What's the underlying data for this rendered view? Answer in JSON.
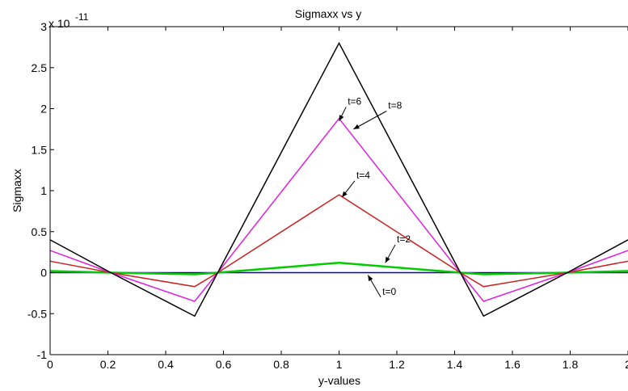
{
  "chart_data": {
    "type": "line",
    "title": "Sigmaxx vs y",
    "xlabel": "y-values",
    "ylabel": "Sigmaxx",
    "y_exponent_label": "x 10",
    "y_exponent_power": "-11",
    "xlim": [
      0,
      2
    ],
    "ylim": [
      -1,
      3
    ],
    "grid": false,
    "x_ticks": [
      0,
      0.2,
      0.4,
      0.6,
      0.8,
      1,
      1.2,
      1.4,
      1.6,
      1.8,
      2
    ],
    "x_tick_labels": [
      "0",
      "0.2",
      "0.4",
      "0.6",
      "0.8",
      "1",
      "1.2",
      "1.4",
      "1.6",
      "1.8",
      "2"
    ],
    "y_ticks": [
      -1,
      -0.5,
      0,
      0.5,
      1,
      1.5,
      2,
      2.5,
      3
    ],
    "y_tick_labels": [
      "-1",
      "-0.5",
      "0",
      "0.5",
      "1",
      "1.5",
      "2",
      "2.5",
      "3"
    ],
    "series": [
      {
        "name": "t=0",
        "color": "#0000cc",
        "x": [
          0,
          0.5,
          1,
          1.5,
          2
        ],
        "y": [
          0,
          0,
          0,
          0,
          0
        ]
      },
      {
        "name": "t=2",
        "color": "#00cc00",
        "x": [
          0,
          0.21,
          0.5,
          0.58,
          1,
          1.42,
          1.5,
          1.79,
          2
        ],
        "y": [
          0.02,
          0,
          -0.02,
          0,
          0.12,
          0,
          -0.02,
          0,
          0.02
        ]
      },
      {
        "name": "t=4",
        "color": "#cc2222",
        "x": [
          0,
          0.21,
          0.5,
          0.58,
          1,
          1.42,
          1.5,
          1.79,
          2
        ],
        "y": [
          0.14,
          0,
          -0.17,
          0,
          0.95,
          0,
          -0.17,
          0,
          0.14
        ]
      },
      {
        "name": "t=6",
        "color": "#dd22dd",
        "x": [
          0,
          0.21,
          0.5,
          0.58,
          1,
          1.42,
          1.5,
          1.79,
          2
        ],
        "y": [
          0.27,
          0,
          -0.35,
          0,
          1.88,
          0,
          -0.35,
          0,
          0.27
        ]
      },
      {
        "name": "t=8",
        "color": "#000000",
        "x": [
          0,
          0.21,
          0.5,
          0.58,
          1,
          1.42,
          1.5,
          1.79,
          2
        ],
        "y": [
          0.4,
          0,
          -0.53,
          0,
          2.8,
          0,
          -0.53,
          0,
          0.4
        ]
      }
    ],
    "annotations": [
      {
        "text": "t=8",
        "label_x": 1.17,
        "label_y": 2.0,
        "arrow_x": 1.05,
        "arrow_y": 1.75
      },
      {
        "text": "t=6",
        "label_x": 1.03,
        "label_y": 2.05,
        "arrow_x": 1.0,
        "arrow_y": 1.85
      },
      {
        "text": "t=4",
        "label_x": 1.06,
        "label_y": 1.15,
        "arrow_x": 1.01,
        "arrow_y": 0.92
      },
      {
        "text": "t=2",
        "label_x": 1.2,
        "label_y": 0.37,
        "arrow_x": 1.16,
        "arrow_y": 0.12
      },
      {
        "text": "t=0",
        "label_x": 1.15,
        "label_y": -0.27,
        "arrow_x": 1.1,
        "arrow_y": -0.03
      }
    ]
  }
}
